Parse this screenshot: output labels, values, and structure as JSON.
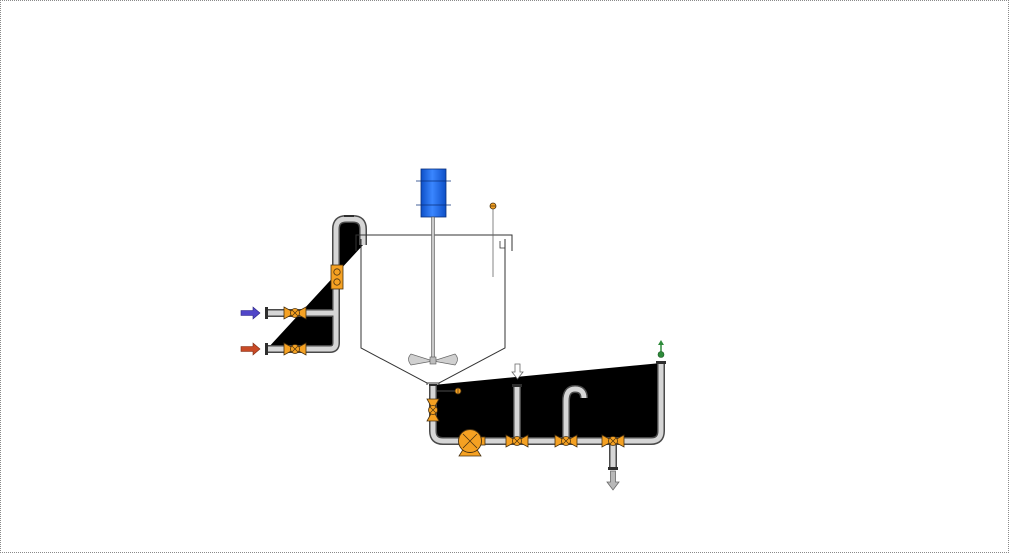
{
  "colors": {
    "valve": "#f5a122",
    "motor": "#1e6ff5",
    "inlet_blue": "#5046c8",
    "inlet_red": "#c84a26",
    "vent_green": "#2e8b3a",
    "outlet_gray": "#b8b8b8",
    "pipe_outline": "#4a4a4a",
    "pipe_fill": "#d6d6d6"
  },
  "components": {
    "inlet_arrows": [
      "arrow-right-icon",
      "arrow-right-icon"
    ],
    "valves": [
      "butterfly-valve-icon",
      "butterfly-valve-icon",
      "butterfly-valve-icon",
      "butterfly-valve-icon",
      "butterfly-valve-icon",
      "butterfly-valve-icon"
    ],
    "flow_meter": "flowmeter-icon",
    "motor": "motor-icon",
    "agitator": "agitator-icon",
    "level_sensor": "level-sensor-icon",
    "pump": "centrifugal-pump-icon",
    "outlet_arrows": [
      "arrow-down-icon",
      "arrow-down-icon"
    ],
    "vent_arrow": "arrow-up-icon"
  }
}
